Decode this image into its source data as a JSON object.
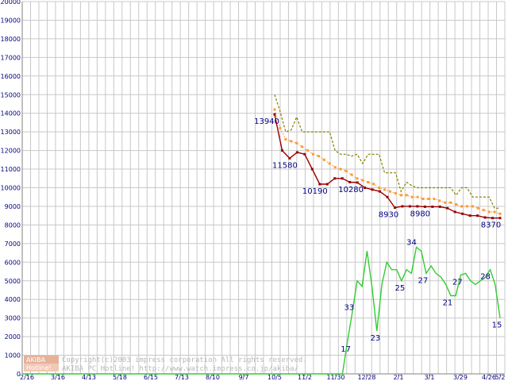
{
  "chart_data": {
    "type": "line",
    "ylim": [
      0,
      20000
    ],
    "ytick_labels": [
      "0",
      "1000",
      "2000",
      "3000",
      "4000",
      "5000",
      "6000",
      "7000",
      "8000",
      "9000",
      "10000",
      "11000",
      "12000",
      "13000",
      "14000",
      "15000",
      "16000",
      "17000",
      "18000",
      "19000",
      "20000"
    ],
    "xtick_labels": [
      "2/16",
      "3/16",
      "4/13",
      "5/18",
      "6/15",
      "7/13",
      "8/10",
      "9/7",
      "10/5",
      "11/2",
      "11/30",
      "12/28",
      "2/1",
      "3/1",
      "3/29",
      "4/26",
      "5/2"
    ],
    "grid": true,
    "series": [
      {
        "key": "max_price",
        "color": "#808000",
        "style": "dashed",
        "points": [
          [
            0,
            15000
          ],
          [
            1,
            14100
          ],
          [
            2,
            13000
          ],
          [
            3,
            13100
          ],
          [
            4,
            13800
          ],
          [
            5,
            13000
          ],
          [
            6,
            13000
          ],
          [
            7,
            13000
          ],
          [
            8,
            13000
          ],
          [
            9,
            13000
          ],
          [
            10,
            13000
          ],
          [
            11,
            12000
          ],
          [
            12,
            11800
          ],
          [
            13,
            11800
          ],
          [
            14,
            11700
          ],
          [
            15,
            11800
          ],
          [
            16,
            11300
          ],
          [
            17,
            11800
          ],
          [
            18,
            11800
          ],
          [
            19,
            11800
          ],
          [
            20,
            10800
          ],
          [
            21,
            10800
          ],
          [
            22,
            10800
          ],
          [
            23,
            9800
          ],
          [
            24,
            10300
          ],
          [
            25,
            10100
          ],
          [
            26,
            10000
          ],
          [
            27,
            10000
          ],
          [
            28,
            10000
          ],
          [
            29,
            10000
          ],
          [
            30,
            10000
          ],
          [
            31,
            10000
          ],
          [
            32,
            10000
          ],
          [
            33,
            9600
          ],
          [
            34,
            10000
          ],
          [
            35,
            10000
          ],
          [
            36,
            9500
          ],
          [
            37,
            9500
          ],
          [
            38,
            9500
          ],
          [
            39,
            9500
          ],
          [
            40,
            8900
          ],
          [
            41,
            8900
          ]
        ]
      },
      {
        "key": "avg_price",
        "color": "#ff9933",
        "style": "dotted",
        "points": [
          [
            0,
            14200
          ],
          [
            1,
            13200
          ],
          [
            2,
            12600
          ],
          [
            3,
            12500
          ],
          [
            4,
            12400
          ],
          [
            5,
            12200
          ],
          [
            6,
            12000
          ],
          [
            7,
            11800
          ],
          [
            8,
            11700
          ],
          [
            9,
            11500
          ],
          [
            10,
            11300
          ],
          [
            11,
            11100
          ],
          [
            12,
            11000
          ],
          [
            13,
            10900
          ],
          [
            14,
            10700
          ],
          [
            15,
            10500
          ],
          [
            16,
            10400
          ],
          [
            17,
            10300
          ],
          [
            18,
            10200
          ],
          [
            19,
            10000
          ],
          [
            20,
            9900
          ],
          [
            21,
            9800
          ],
          [
            22,
            9700
          ],
          [
            23,
            9600
          ],
          [
            24,
            9600
          ],
          [
            25,
            9500
          ],
          [
            26,
            9500
          ],
          [
            27,
            9400
          ],
          [
            28,
            9400
          ],
          [
            29,
            9400
          ],
          [
            30,
            9300
          ],
          [
            31,
            9200
          ],
          [
            32,
            9200
          ],
          [
            33,
            9100
          ],
          [
            34,
            9000
          ],
          [
            35,
            9000
          ],
          [
            36,
            9000
          ],
          [
            37,
            8900
          ],
          [
            38,
            8800
          ],
          [
            39,
            8700
          ],
          [
            40,
            8700
          ],
          [
            41,
            8600
          ]
        ]
      },
      {
        "key": "min_price",
        "color": "#990000",
        "style": "solid",
        "points": [
          [
            0,
            13940
          ],
          [
            1,
            12000
          ],
          [
            2,
            11580
          ],
          [
            3,
            11900
          ],
          [
            4,
            11800
          ],
          [
            5,
            11000
          ],
          [
            6,
            10190
          ],
          [
            7,
            10190
          ],
          [
            8,
            10500
          ],
          [
            9,
            10500
          ],
          [
            10,
            10300
          ],
          [
            11,
            10280
          ],
          [
            12,
            10000
          ],
          [
            13,
            9900
          ],
          [
            14,
            9800
          ],
          [
            15,
            9500
          ],
          [
            16,
            8930
          ],
          [
            17,
            9000
          ],
          [
            18,
            9000
          ],
          [
            19,
            9000
          ],
          [
            20,
            8980
          ],
          [
            21,
            8980
          ],
          [
            22,
            8980
          ],
          [
            23,
            8900
          ],
          [
            24,
            8700
          ],
          [
            25,
            8600
          ],
          [
            26,
            8500
          ],
          [
            27,
            8500
          ],
          [
            28,
            8400
          ],
          [
            29,
            8370
          ],
          [
            30,
            8370
          ]
        ]
      },
      {
        "key": "shop_count",
        "color": "#33cc33",
        "style": "solid",
        "points": [
          [
            0,
            0
          ],
          [
            1,
            0
          ],
          [
            2,
            0
          ],
          [
            3,
            0
          ],
          [
            4,
            0
          ],
          [
            5,
            0
          ],
          [
            6,
            0
          ],
          [
            7,
            0
          ],
          [
            8,
            0
          ],
          [
            9,
            0
          ],
          [
            10,
            0
          ],
          [
            11,
            0
          ],
          [
            12,
            0
          ],
          [
            13,
            0
          ],
          [
            14,
            0
          ],
          [
            15,
            0
          ],
          [
            16,
            0
          ],
          [
            17,
            0
          ],
          [
            18,
            0
          ],
          [
            19,
            0
          ],
          [
            20,
            0
          ],
          [
            21,
            0
          ],
          [
            22,
            0
          ],
          [
            23,
            0
          ],
          [
            24,
            0
          ],
          [
            25,
            0
          ],
          [
            26,
            0
          ],
          [
            27,
            0
          ],
          [
            28,
            0
          ],
          [
            29,
            0
          ],
          [
            30,
            0
          ],
          [
            31,
            0
          ],
          [
            32,
            0
          ],
          [
            33,
            0
          ],
          [
            34,
            0
          ],
          [
            35,
            0
          ],
          [
            36,
            0
          ],
          [
            37,
            0
          ],
          [
            38,
            0
          ],
          [
            39,
            0
          ],
          [
            40,
            0
          ],
          [
            41,
            0
          ],
          [
            42,
            0
          ],
          [
            43,
            0
          ],
          [
            44,
            0
          ],
          [
            45,
            0
          ],
          [
            46,
            0
          ],
          [
            47,
            0
          ],
          [
            48,
            0
          ],
          [
            49,
            0
          ],
          [
            50,
            0
          ],
          [
            51,
            0
          ],
          [
            52,
            0
          ],
          [
            53,
            0
          ],
          [
            54,
            0
          ],
          [
            55,
            0
          ],
          [
            56,
            0
          ],
          [
            57,
            0
          ],
          [
            58,
            0
          ],
          [
            59,
            0
          ],
          [
            60,
            0
          ],
          [
            61,
            0
          ],
          [
            62,
            0
          ],
          [
            63,
            0
          ],
          [
            64,
            0
          ],
          [
            65,
            0
          ],
          [
            66,
            1700
          ],
          [
            67,
            3300
          ],
          [
            68,
            5000
          ],
          [
            69,
            4700
          ],
          [
            70,
            6600
          ],
          [
            71,
            4700
          ],
          [
            72,
            2300
          ],
          [
            73,
            4800
          ],
          [
            74,
            6000
          ],
          [
            75,
            5600
          ],
          [
            76,
            5600
          ],
          [
            77,
            5000
          ],
          [
            78,
            5600
          ],
          [
            79,
            5400
          ],
          [
            80,
            6800
          ],
          [
            81,
            6600
          ],
          [
            82,
            5400
          ],
          [
            83,
            5800
          ],
          [
            84,
            5400
          ],
          [
            85,
            5200
          ],
          [
            86,
            4800
          ],
          [
            87,
            4200
          ],
          [
            88,
            4200
          ],
          [
            89,
            5300
          ],
          [
            90,
            5400
          ],
          [
            91,
            5000
          ],
          [
            92,
            4800
          ],
          [
            93,
            5000
          ],
          [
            94,
            5200
          ],
          [
            95,
            5600
          ],
          [
            96,
            4800
          ],
          [
            97,
            3000
          ]
        ]
      }
    ],
    "data_labels": [
      {
        "series": "min_price",
        "text": "13940"
      },
      {
        "series": "min_price",
        "text": "11580"
      },
      {
        "series": "min_price",
        "text": "10190"
      },
      {
        "series": "min_price",
        "text": "10280"
      },
      {
        "series": "min_price",
        "text": "8930"
      },
      {
        "series": "min_price",
        "text": "8980"
      },
      {
        "series": "min_price",
        "text": "8370"
      },
      {
        "series": "shop_count",
        "text": "17"
      },
      {
        "series": "shop_count",
        "text": "33"
      },
      {
        "series": "shop_count",
        "text": "23"
      },
      {
        "series": "shop_count",
        "text": "25"
      },
      {
        "series": "shop_count",
        "text": "34"
      },
      {
        "series": "shop_count",
        "text": "27"
      },
      {
        "series": "shop_count",
        "text": "21"
      },
      {
        "series": "shop_count",
        "text": "27"
      },
      {
        "series": "shop_count",
        "text": "28"
      },
      {
        "series": "shop_count",
        "text": "15"
      }
    ]
  },
  "watermark": {
    "badge_top": "AKIBA",
    "badge_bottom": "Hotline!",
    "line1": "Copyright(c)2003 impress corporation All rights reserved.",
    "line2": "AKIBA PC Hotline!  http://www.watch.impress.co.jp/akiba/"
  }
}
